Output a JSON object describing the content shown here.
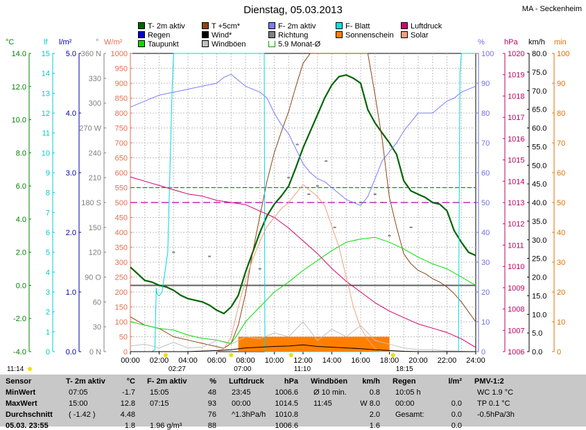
{
  "title": "Dienstag, 05.03.2013",
  "station": "MA - Seckenheim",
  "legend": [
    {
      "label": "T- 2m aktiv",
      "color": "#006400"
    },
    {
      "label": "T +5cm*",
      "color": "#8b4513"
    },
    {
      "label": "F- 2m aktiv",
      "color": "#7b7bff"
    },
    {
      "label": "F- Blatt",
      "color": "#00e5e5"
    },
    {
      "label": "Luftdruck",
      "color": "#d4006f"
    },
    {
      "label": "Regen",
      "color": "#0000cc"
    },
    {
      "label": "Wind*",
      "color": "#000000"
    },
    {
      "label": "Richtung",
      "color": "#808080"
    },
    {
      "label": "Sonnenschein",
      "color": "#ff8000"
    },
    {
      "label": "Solar",
      "color": "#f4a07a"
    },
    {
      "label": "Taupunkt",
      "color": "#00e000"
    },
    {
      "label": "Windböen",
      "color": "#c0c0c0"
    },
    {
      "label": "5.9 Monat-Ø",
      "color": "#00a000"
    }
  ],
  "axis_headers": {
    "celsius": "°C",
    "lf": "lf",
    "lm2": "l/m²",
    "deg": "°",
    "wm2": "W/m²",
    "pct": "%",
    "hpa": "hPa",
    "kmh": "km/h",
    "min": "min"
  },
  "chart_data": {
    "type": "line",
    "xlabel": "",
    "x_ticks": [
      "00:00",
      "02:00",
      "04:00",
      "06:00",
      "08:00",
      "10:00",
      "12:00",
      "14:00",
      "16:00",
      "18:00",
      "20:00",
      "22:00",
      "24:00"
    ],
    "xlim": [
      0,
      24
    ],
    "axes": {
      "celsius": {
        "ylim": [
          -4,
          14
        ],
        "ticks": [
          "14.0",
          "12.0",
          "10.0",
          "8.0",
          "6.0",
          "4.0",
          "2.0",
          "0.0",
          "-2.0",
          "-4.0"
        ],
        "color": "#008000"
      },
      "lf": {
        "ylim": [
          0,
          15
        ],
        "ticks": [
          "15",
          "14",
          "13",
          "12",
          "11",
          "10",
          "9",
          "8",
          "7",
          "6",
          "5",
          "4",
          "3",
          "2",
          "1",
          "0"
        ],
        "color": "#00cccc"
      },
      "lm2": {
        "ylim": [
          0,
          5
        ],
        "ticks": [
          "5.0",
          "4.0",
          "3.0",
          "2.0",
          "1.0",
          "0.0"
        ],
        "color": "#0000aa"
      },
      "direction": {
        "ticks": [
          "360 N",
          "330",
          "300",
          "270 W",
          "240",
          "210",
          "180 S",
          "150",
          "120",
          "90 O",
          "60",
          "30",
          "0 N"
        ],
        "color": "#808080"
      },
      "wm2": {
        "ylim": [
          0,
          1000
        ],
        "ticks": [
          "1000",
          "950",
          "900",
          "850",
          "800",
          "750",
          "700",
          "650",
          "600",
          "550",
          "500",
          "450",
          "400",
          "350",
          "300",
          "250",
          "200",
          "150",
          "100",
          "50",
          "0"
        ],
        "color": "#e07050"
      },
      "pct": {
        "ylim": [
          0,
          100
        ],
        "ticks": [
          "100",
          "90",
          "80",
          "70",
          "60",
          "50",
          "40",
          "30",
          "20",
          "10",
          "0"
        ],
        "color": "#7070e0"
      },
      "hpa": {
        "ylim": [
          1006,
          1020
        ],
        "ticks": [
          "1020",
          "1019",
          "1018",
          "1017",
          "1016",
          "1015",
          "1014",
          "1013",
          "1012",
          "1011",
          "1010",
          "1009",
          "1008",
          "1007",
          "1006"
        ],
        "color": "#c00060"
      },
      "kmh": {
        "ylim": [
          0,
          80
        ],
        "ticks": [
          "80.0",
          "75.0",
          "70.0",
          "65.0",
          "60.0",
          "55.0",
          "50.0",
          "45.0",
          "40.0",
          "35.0",
          "30.0",
          "25.0",
          "20.0",
          "15.0",
          "10.0",
          "5.0",
          "0.0"
        ],
        "color": "#000000"
      },
      "min": {
        "ylim": [
          0,
          100
        ],
        "ticks": [
          "100",
          "90",
          "80",
          "70",
          "60",
          "50",
          "40",
          "30",
          "20",
          "10",
          "0"
        ],
        "color": "#e07000"
      }
    },
    "series": [
      {
        "name": "T- 2m aktiv",
        "axis": "celsius",
        "color": "#006400",
        "width": 2.2,
        "x": [
          0,
          0.5,
          1,
          1.5,
          2,
          2.5,
          3,
          3.5,
          4,
          4.5,
          5,
          5.5,
          6,
          6.5,
          7,
          7.5,
          8,
          8.5,
          9,
          9.5,
          10,
          10.5,
          11,
          11.5,
          12,
          12.5,
          13,
          13.5,
          14,
          14.5,
          15,
          15.5,
          16,
          16.5,
          17,
          17.5,
          18,
          18.5,
          19,
          19.5,
          20,
          20.5,
          21,
          21.5,
          22,
          22.5,
          23,
          23.5,
          24
        ],
        "y": [
          1.1,
          0.7,
          0.3,
          0.2,
          0.0,
          -0.1,
          -0.3,
          -0.6,
          -0.8,
          -0.9,
          -1.0,
          -1.2,
          -1.5,
          -1.7,
          -1.3,
          -0.6,
          0.8,
          2.0,
          3.2,
          4.2,
          4.9,
          5.4,
          6.0,
          7.1,
          8.3,
          9.3,
          10.3,
          11.3,
          12.1,
          12.6,
          12.7,
          12.5,
          12.2,
          10.6,
          9.8,
          9.2,
          8.6,
          7.9,
          6.3,
          5.7,
          5.5,
          5.3,
          5.0,
          4.9,
          4.5,
          3.3,
          2.6,
          2.0,
          1.8
        ]
      },
      {
        "name": "T +5cm*",
        "axis": "celsius",
        "color": "#8b4513",
        "width": 1,
        "x": [
          0,
          1,
          2,
          3,
          4,
          5,
          6,
          6.5,
          7,
          7.5,
          8,
          8.5,
          9,
          9.5,
          10,
          10.5,
          11,
          11.5,
          12,
          12.5,
          13,
          13.5,
          14,
          14.5,
          15,
          15.5,
          16,
          16.5,
          17,
          17.5,
          18,
          18.5,
          19,
          19.5,
          20,
          20.5,
          21,
          21.5,
          22,
          22.5,
          23,
          23.5,
          24
        ],
        "y": [
          -1.9,
          -2.4,
          -2.6,
          -3.1,
          -3.3,
          -3.5,
          -3.7,
          -3.8,
          -3.5,
          -2.4,
          -0.5,
          2.0,
          4.2,
          6.3,
          8.0,
          9.3,
          10.5,
          12.0,
          13.4,
          14.6,
          15.9,
          16.9,
          17.8,
          18.8,
          19.5,
          20.2,
          20.9,
          17.1,
          11.5,
          8.8,
          5.3,
          3.5,
          1.9,
          1.3,
          0.9,
          0.7,
          0.4,
          0.2,
          -0.1,
          -0.5,
          -1.0,
          -1.6,
          -2.2
        ]
      },
      {
        "name": "Taupunkt",
        "axis": "celsius",
        "color": "#00e000",
        "width": 1,
        "x": [
          0,
          1,
          2,
          3,
          4,
          5,
          6,
          7,
          7.5,
          8,
          9,
          10,
          11,
          12,
          13,
          14,
          15,
          16,
          17,
          18,
          19,
          20,
          21,
          22,
          23,
          24
        ],
        "y": [
          -2.2,
          -2.4,
          -2.6,
          -2.7,
          -3.0,
          -3.2,
          -3.3,
          -3.5,
          -2.9,
          -2.2,
          -1.3,
          -0.4,
          0.2,
          0.9,
          1.5,
          2.1,
          2.6,
          2.8,
          2.9,
          2.6,
          2.2,
          1.7,
          1.3,
          1.0,
          0.5,
          0.0
        ]
      },
      {
        "name": "F- 2m aktiv",
        "axis": "pct",
        "color": "#7b7bff",
        "width": 1,
        "x": [
          0,
          1,
          2,
          3,
          4,
          5,
          6,
          6.5,
          7,
          7.5,
          8,
          8.5,
          9,
          9.5,
          10,
          10.5,
          11,
          11.5,
          12,
          12.5,
          13,
          13.5,
          14,
          14.5,
          15,
          15.5,
          16,
          16.5,
          17,
          17.5,
          18,
          18.5,
          19,
          19.5,
          20,
          20.5,
          21,
          21.5,
          22,
          22.5,
          23,
          23.5,
          24
        ],
        "y": [
          82,
          84,
          86,
          87,
          88,
          89,
          90,
          92,
          93,
          91,
          89,
          88,
          87,
          85,
          80,
          76,
          73,
          68,
          63,
          60,
          58,
          57,
          55,
          53,
          51,
          50,
          49,
          52,
          58,
          64,
          67,
          70,
          74,
          77,
          80,
          80,
          80,
          82,
          84,
          85,
          87,
          88,
          89
        ]
      },
      {
        "name": "F- Blatt",
        "axis": "lf",
        "color": "#00d8e0",
        "width": 1,
        "x": [
          0,
          1,
          1.5,
          1.7,
          1.8,
          1.85,
          2.0,
          2.2,
          2.6,
          2.9,
          3.0,
          3.2,
          4,
          6,
          8,
          9,
          9.3,
          9.35,
          10,
          11,
          14,
          16,
          18,
          20,
          21,
          22,
          22.8,
          22.9,
          23,
          24
        ],
        "y": [
          0,
          0,
          0,
          0.1,
          3.2,
          2.9,
          2.8,
          3.0,
          5.0,
          13.2,
          15,
          16,
          16,
          16,
          16,
          16,
          16,
          0,
          0,
          0,
          0,
          0,
          0,
          0,
          0,
          0,
          0,
          14,
          15,
          16
        ]
      },
      {
        "name": "Luftdruck",
        "axis": "hpa",
        "color": "#d4006f",
        "width": 1,
        "x": [
          0,
          1,
          2,
          3,
          4,
          5,
          6,
          7,
          8,
          9,
          10,
          11,
          12,
          13,
          14,
          15,
          16,
          17,
          18,
          19,
          20,
          21,
          22,
          23,
          24
        ],
        "y": [
          1014.2,
          1014.0,
          1013.8,
          1013.6,
          1013.4,
          1013.3,
          1013.1,
          1013.0,
          1012.9,
          1012.6,
          1012.3,
          1011.8,
          1011.2,
          1010.6,
          1009.9,
          1009.3,
          1008.8,
          1008.3,
          1007.9,
          1007.6,
          1007.3,
          1007.1,
          1006.9,
          1006.6,
          1006.2
        ]
      },
      {
        "name": "Solar",
        "axis": "wm2",
        "color": "#f4a07a",
        "width": 1,
        "x": [
          0,
          6,
          6.5,
          7,
          7.5,
          8,
          8.5,
          9,
          9.5,
          10,
          10.5,
          11,
          11.5,
          12,
          12.5,
          13,
          13.5,
          14,
          14.5,
          15,
          15.5,
          16,
          16.5,
          17,
          17.5,
          18,
          24
        ],
        "y": [
          0,
          0,
          10,
          50,
          150,
          240,
          310,
          370,
          420,
          450,
          480,
          500,
          530,
          560,
          540,
          520,
          490,
          420,
          350,
          250,
          150,
          80,
          40,
          10,
          0,
          0,
          0
        ]
      },
      {
        "name": "Windböen",
        "axis": "kmh",
        "color": "#c0c0c0",
        "width": 1,
        "x": [
          0,
          1,
          2,
          3,
          4,
          5,
          6,
          7,
          8,
          9,
          10,
          11,
          12,
          13,
          14,
          15,
          16,
          17,
          18,
          19,
          20,
          21,
          22,
          23,
          24
        ],
        "y": [
          1.5,
          2,
          1,
          2.5,
          1,
          1.2,
          3,
          2,
          4,
          3.5,
          5,
          4,
          8,
          3,
          6,
          4,
          7,
          3,
          2,
          1,
          0.5,
          0.5,
          0.2,
          0.1,
          0
        ]
      },
      {
        "name": "Wind*",
        "axis": "kmh",
        "color": "#000000",
        "width": 1,
        "x": [
          0,
          2,
          4,
          6,
          7,
          8,
          9,
          10,
          11,
          12,
          13,
          14,
          15,
          16,
          17,
          18,
          19,
          20,
          22,
          24
        ],
        "y": [
          0,
          0,
          0,
          0.3,
          0.5,
          1.0,
          1.2,
          1.4,
          1.5,
          1.8,
          1.4,
          1.2,
          1.0,
          0.8,
          0.5,
          0.3,
          0.1,
          0,
          0,
          0
        ]
      }
    ],
    "sunshine": {
      "axis": "min",
      "color": "#ff8000",
      "x_start": 7.5,
      "x_end": 18.0,
      "level": 5
    },
    "reference_lines": [
      {
        "name": "5.9 Monat-Ø",
        "axis": "celsius",
        "value": 5.9,
        "color": "#00a000",
        "dash": "6,3"
      },
      {
        "name": "Luftdruck-Ref",
        "axis": "hpa",
        "value": 1013.0,
        "color": "#b000a0",
        "dash": "10,5"
      },
      {
        "name": "Null",
        "axis": "celsius",
        "value": 0.0,
        "color": "#606060",
        "dash": ""
      }
    ],
    "direction_dots": {
      "x": [
        3.0,
        5.5,
        9.0,
        11.0,
        11.6,
        12.4,
        13.0,
        13.6,
        14.2,
        16.0,
        17.0,
        17.5,
        18.0,
        19.5
      ],
      "deg": [
        120,
        115,
        100,
        210,
        250,
        190,
        200,
        230,
        150,
        180,
        190,
        180,
        140,
        150
      ]
    },
    "sun_markers": [
      {
        "label": "11:14",
        "x_pct": 0.0
      },
      {
        "label": "02:27",
        "x": 2.45
      },
      {
        "label": "07:00",
        "x": 7.0
      },
      {
        "label": "11:10",
        "x": 11.17
      },
      {
        "label": "18:15",
        "x": 18.25
      }
    ]
  },
  "summary": {
    "rows": [
      "Sensor",
      "MinWert",
      "MaxWert",
      "Durchschnitt",
      "05.03. 23:55"
    ],
    "cols": [
      {
        "head": "T- 2m aktiv",
        "unit": "°C",
        "cells": [
          [
            "07:05",
            "-1.7"
          ],
          [
            "15:00",
            "12.8"
          ],
          [
            "( -1.42 )",
            "4.48"
          ],
          [
            "",
            "1.8"
          ]
        ]
      },
      {
        "head": "F- 2m aktiv",
        "unit": "%",
        "cells": [
          [
            "15:05",
            "48"
          ],
          [
            "07:15",
            "93"
          ],
          [
            "",
            "76"
          ],
          [
            "1.96 g/m³",
            "88"
          ]
        ]
      },
      {
        "head": "Luftdruck",
        "unit": "hPa",
        "cells": [
          [
            "23:45",
            "1006.6"
          ],
          [
            "00:00",
            "1014.5"
          ],
          [
            "^1.3hPa/h",
            "1010.8"
          ],
          [
            "",
            "1006.6"
          ]
        ]
      },
      {
        "head": "Windböen",
        "unit": "km/h",
        "cells": [
          [
            "Ø 10 min.",
            "0.8"
          ],
          [
            "11:45",
            "W 8.0"
          ],
          [
            "",
            "2.0"
          ],
          [
            "",
            "1.6"
          ]
        ]
      },
      {
        "head": "Regen",
        "unit": "l/m²",
        "cells": [
          [
            "10:05 h",
            ""
          ],
          [
            "00:00",
            "0.0"
          ],
          [
            "Gesamt:",
            "0.0"
          ],
          [
            "",
            "0.0"
          ]
        ]
      },
      {
        "head": "PMV-1:2",
        "unit": "",
        "cells": [
          [
            "WC 1.9 °C",
            ""
          ],
          [
            "TP 0.1 °C",
            ""
          ],
          [
            "-0.5hPa/3h",
            ""
          ],
          [
            "",
            ""
          ]
        ]
      }
    ]
  }
}
